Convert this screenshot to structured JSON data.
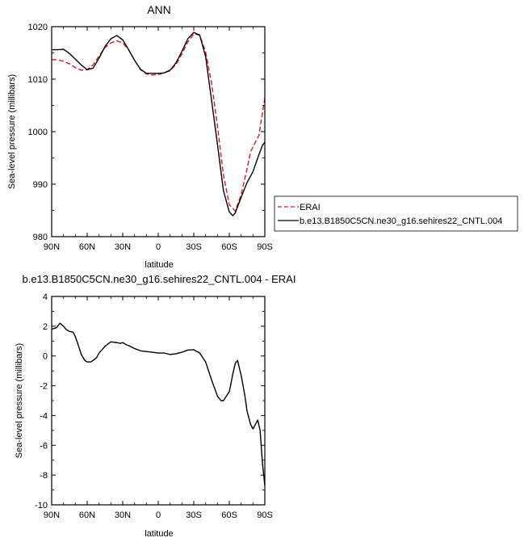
{
  "chart_data": [
    {
      "type": "line",
      "title": "ANN",
      "xlabel": "latitude",
      "ylabel": "Sea-level pressure (millibars)",
      "xlim": [
        90,
        -90
      ],
      "ylim": [
        980,
        1020
      ],
      "x_ticks": [
        90,
        60,
        30,
        0,
        -30,
        -60,
        -90
      ],
      "x_tick_labels": [
        "90N",
        "60N",
        "30N",
        "0",
        "30S",
        "60S",
        "90S"
      ],
      "y_ticks": [
        980,
        990,
        1000,
        1010,
        1020
      ],
      "y_tick_labels": [
        "980",
        "990",
        "1000",
        "1010",
        "1020"
      ],
      "legend_position": "right, outside plot",
      "series": [
        {
          "name": "ERAI",
          "color": "#e0141e",
          "style": "dashed",
          "x": [
            90,
            85,
            80,
            75,
            70,
            65,
            60,
            55,
            50,
            45,
            40,
            35,
            30,
            25,
            20,
            15,
            10,
            5,
            0,
            -5,
            -10,
            -15,
            -20,
            -25,
            -30,
            -35,
            -40,
            -45,
            -50,
            -55,
            -60,
            -65,
            -70,
            -75,
            -78,
            -80,
            -85,
            -88,
            -90
          ],
          "values": [
            1013.7,
            1013.7,
            1013.4,
            1012.9,
            1012.2,
            1011.7,
            1011.8,
            1012.7,
            1014.4,
            1016.0,
            1016.9,
            1017.3,
            1016.9,
            1015.6,
            1013.6,
            1011.8,
            1011.0,
            1010.8,
            1010.9,
            1011.2,
            1011.6,
            1012.8,
            1014.8,
            1017.1,
            1018.6,
            1018.4,
            1015.2,
            1009.3,
            1001.1,
            991.8,
            986.1,
            984.9,
            988.0,
            992.9,
            996.2,
            997.1,
            999.3,
            1003.6,
            1006.4
          ]
        },
        {
          "name": "b.e13.B1850C5CN.ne30_g16.sehires22_CNTL.004",
          "color": "#000000",
          "style": "solid",
          "x": [
            90,
            85,
            80,
            75,
            70,
            65,
            60,
            55,
            50,
            45,
            40,
            35,
            30,
            25,
            20,
            15,
            10,
            5,
            0,
            -5,
            -10,
            -15,
            -20,
            -25,
            -30,
            -35,
            -40,
            -45,
            -50,
            -55,
            -60,
            -63,
            -65,
            -70,
            -75,
            -80,
            -85,
            -88,
            -90
          ],
          "values": [
            1015.6,
            1015.6,
            1015.7,
            1014.9,
            1013.8,
            1012.7,
            1011.8,
            1012.1,
            1014.0,
            1016.2,
            1017.7,
            1018.3,
            1017.5,
            1015.6,
            1013.6,
            1011.9,
            1011.1,
            1011.1,
            1011.1,
            1011.2,
            1011.7,
            1013.1,
            1015.3,
            1017.7,
            1018.9,
            1018.4,
            1014.3,
            1006.0,
            997.6,
            988.8,
            984.7,
            984.0,
            984.5,
            987.5,
            990.3,
            992.4,
            995.6,
            997.4,
            998.0
          ]
        }
      ]
    },
    {
      "type": "line",
      "title": "b.e13.B1850C5CN.ne30_g16.sehires22_CNTL.004 - ERAI",
      "xlabel": "latitude",
      "ylabel": "Sea-level pressure (millibars)",
      "xlim": [
        90,
        -90
      ],
      "ylim": [
        -10,
        4
      ],
      "x_ticks": [
        90,
        60,
        30,
        0,
        -30,
        -60,
        -90
      ],
      "x_tick_labels": [
        "90N",
        "60N",
        "30N",
        "0",
        "30S",
        "60S",
        "90S"
      ],
      "y_ticks": [
        -10,
        -8,
        -6,
        -4,
        -2,
        0,
        2,
        4
      ],
      "y_tick_labels": [
        "-10",
        "-8",
        "-6",
        "-4",
        "-2",
        "0",
        "2",
        "4"
      ],
      "series": [
        {
          "color": "#000000",
          "style": "solid",
          "x": [
            90,
            86,
            83,
            80,
            78,
            75,
            72,
            70,
            67,
            65,
            62,
            60,
            57,
            55,
            52,
            50,
            45,
            40,
            35,
            32,
            30,
            27,
            25,
            20,
            15,
            10,
            5,
            0,
            -5,
            -10,
            -15,
            -20,
            -25,
            -30,
            -35,
            -40,
            -45,
            -50,
            -53,
            -55,
            -60,
            -63,
            -65,
            -67,
            -70,
            -73,
            -75,
            -78,
            -80,
            -82,
            -84,
            -86,
            -88,
            -90
          ],
          "values": [
            1.8,
            1.9,
            2.2,
            2.0,
            1.8,
            1.65,
            1.6,
            1.3,
            0.6,
            0.1,
            -0.3,
            -0.4,
            -0.4,
            -0.3,
            -0.1,
            0.2,
            0.65,
            0.95,
            0.9,
            0.85,
            0.9,
            0.75,
            0.7,
            0.5,
            0.35,
            0.3,
            0.25,
            0.2,
            0.2,
            0.1,
            0.15,
            0.25,
            0.4,
            0.42,
            0.2,
            -0.4,
            -1.6,
            -2.7,
            -3.0,
            -3.0,
            -2.4,
            -1.2,
            -0.5,
            -0.3,
            -1.3,
            -2.6,
            -3.7,
            -4.6,
            -4.9,
            -4.6,
            -4.3,
            -5.0,
            -7.2,
            -8.7
          ]
        }
      ]
    }
  ]
}
